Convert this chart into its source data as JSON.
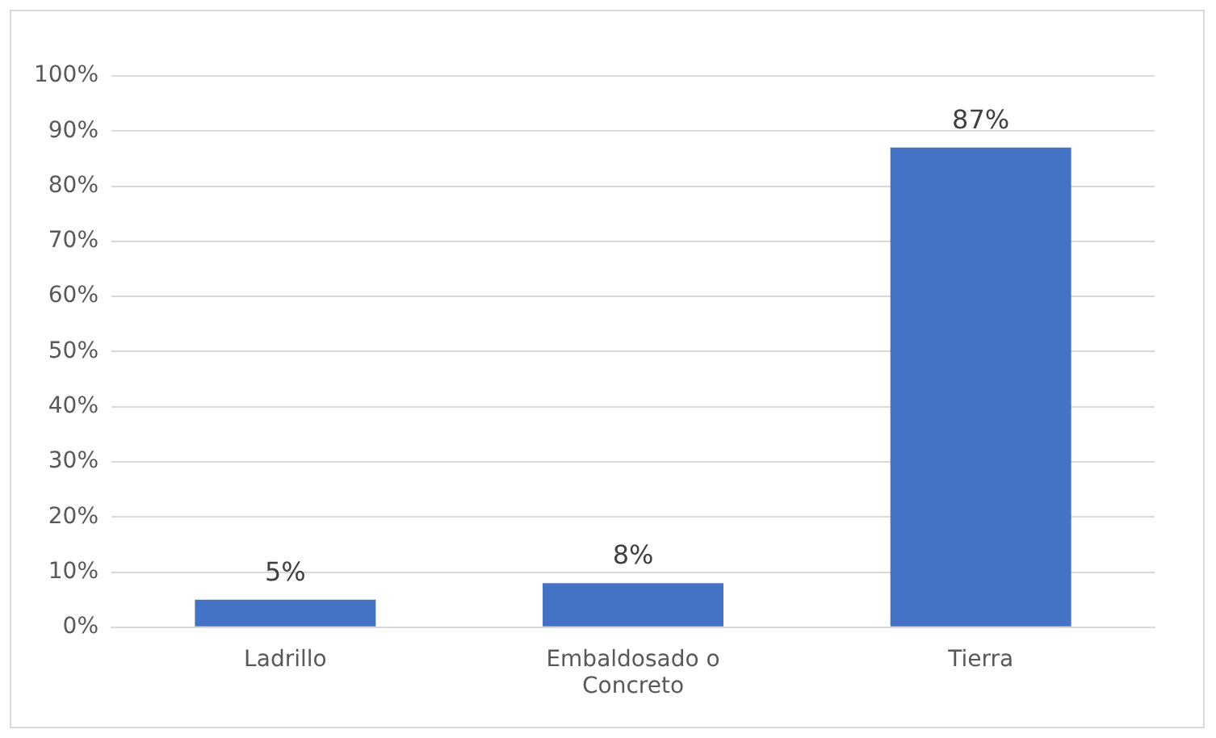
{
  "chart_data": {
    "type": "bar",
    "categories": [
      "Ladrillo",
      "Embaldosado o Concreto",
      "Tierra"
    ],
    "values": [
      5,
      8,
      87
    ],
    "color": "#4472c4",
    "value_labels": [
      "5%",
      "8%",
      "87%"
    ],
    "ylim": [
      0,
      100
    ],
    "yticks": [
      {
        "value": 0,
        "label": "0%"
      },
      {
        "value": 10,
        "label": "10%"
      },
      {
        "value": 20,
        "label": "20%"
      },
      {
        "value": 30,
        "label": "30%"
      },
      {
        "value": 40,
        "label": "40%"
      },
      {
        "value": 50,
        "label": "50%"
      },
      {
        "value": 60,
        "label": "60%"
      },
      {
        "value": 70,
        "label": "70%"
      },
      {
        "value": 80,
        "label": "80%"
      },
      {
        "value": 90,
        "label": "90%"
      },
      {
        "value": 100,
        "label": "100%"
      }
    ],
    "grid": "y",
    "legend": false
  }
}
